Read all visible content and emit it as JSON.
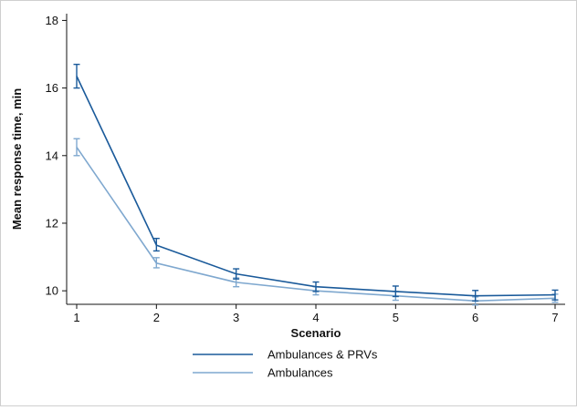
{
  "chart_data": {
    "type": "line",
    "xlabel": "Scenario",
    "ylabel": "Mean response time, min",
    "x": [
      1,
      2,
      3,
      4,
      5,
      6,
      7
    ],
    "xlim": [
      1,
      7
    ],
    "ylim": [
      9.6,
      18.2
    ],
    "x_ticks": [
      1,
      2,
      3,
      4,
      5,
      6,
      7
    ],
    "y_ticks": [
      10,
      12,
      14,
      16,
      18
    ],
    "grid": false,
    "legend_position": "bottom",
    "series": [
      {
        "name": "Ambulances & PRVs",
        "color": "#1a5a9a",
        "values": [
          16.35,
          11.35,
          10.5,
          10.12,
          9.98,
          9.85,
          9.88
        ],
        "error_low": [
          16.0,
          11.18,
          10.35,
          9.98,
          9.83,
          9.7,
          9.73
        ],
        "error_high": [
          16.7,
          11.55,
          10.65,
          10.26,
          10.14,
          10.01,
          10.02
        ]
      },
      {
        "name": "Ambulances",
        "color": "#7fa8cf",
        "values": [
          14.25,
          10.82,
          10.25,
          10.0,
          9.85,
          9.7,
          9.78
        ],
        "error_low": [
          14.0,
          10.68,
          10.12,
          9.88,
          9.72,
          9.58,
          9.66
        ],
        "error_high": [
          14.5,
          10.98,
          10.38,
          10.12,
          9.98,
          9.82,
          9.9
        ]
      }
    ]
  }
}
